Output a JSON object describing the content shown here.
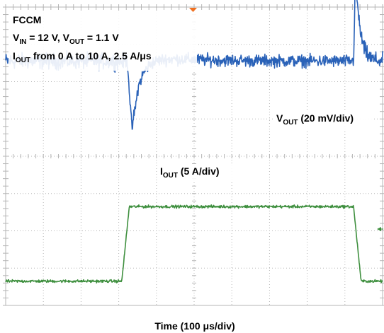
{
  "chart_data": {
    "type": "line",
    "title": "FCCM",
    "conditions": [
      {
        "base": "V",
        "sub": "IN",
        "text": " = 12 V, "
      },
      {
        "base": "V",
        "sub": "OUT",
        "text": " = 1.1 V"
      }
    ],
    "condition_line2": {
      "base": "I",
      "sub": "OUT",
      "text": " from 0 A to 10 A, 2.5 A/μs"
    },
    "xlabel": "Time (100 μs/div)",
    "x_divisions": 10,
    "y_divisions": 8,
    "grid": true,
    "background": "#ffffff",
    "grid_color": "#b5b5b5",
    "series": [
      {
        "label_base": "V",
        "label_sub": "OUT",
        "label_text": " (20 mV/div)",
        "color": "#2a62b8",
        "units": "mV",
        "scale_per_div": 20,
        "baseline_div": 6.55,
        "events": [
          {
            "t_div": 3.23,
            "type": "undershoot",
            "peak_mV": -37
          },
          {
            "t_div": 9.23,
            "type": "overshoot",
            "peak_mV": 48
          }
        ]
      },
      {
        "label_base": "I",
        "label_sub": "OUT",
        "label_text": " (5 A/div)",
        "color": "#3e8f3e",
        "units": "A",
        "scale_per_div": 5,
        "baseline_div": 0.65,
        "steps": [
          {
            "t_div": 3.08,
            "from_A": 0,
            "to_A": 10
          },
          {
            "t_div": 9.23,
            "from_A": 10,
            "to_A": 0
          }
        ]
      }
    ]
  }
}
